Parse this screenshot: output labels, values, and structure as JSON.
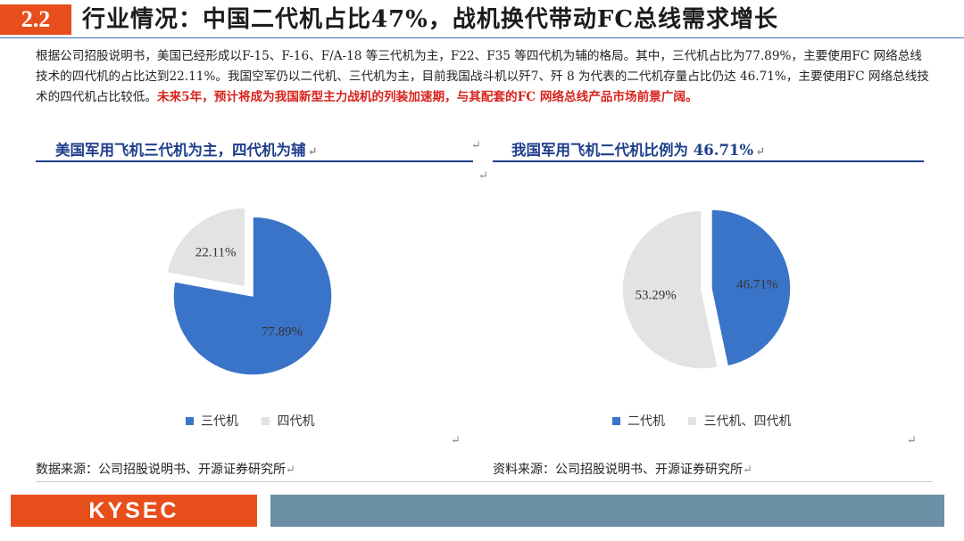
{
  "header": {
    "section_number": "2.2",
    "title": "行业情况：中国二代机占比47%，战机换代带动FC总线需求增长"
  },
  "paragraph": {
    "text_normal": "根据公司招股说明书，美国已经形成以F-15、F-16、F/A-18 等三代机为主，F22、F35 等四代机为辅的格局。其中，三代机占比为77.89%，主要使用FC 网络总线技术的四代机的占比达到22.11%。我国空军仍以二代机、三代机为主，目前我国战斗机以歼7、歼 8 为代表的二代机存量占比仍达 46.71%，主要使用FC 网络总线技术的四代机占比较低。",
    "text_highlight": "未来5年，预计将成为我国新型主力战机的列装加速期，与其配套的FC 网络总线产品市场前景广阔。"
  },
  "left_panel": {
    "subtitle": "美国军用飞机三代机为主，四代机为辅",
    "source": "数据来源：公司招股说明书、开源证券研究所"
  },
  "right_panel": {
    "subtitle": "我国军用飞机二代机比例为 46.71%",
    "source": "资料来源：公司招股说明书、开源证券研究所"
  },
  "marks": {
    "para": "↵"
  },
  "footer": {
    "logo_text": "KYSEC"
  },
  "colors": {
    "accent": "#e84e1b",
    "blue": "#3a74c8",
    "grey": "#e3e3e3",
    "navy": "#1f3f8c",
    "bar": "#6b8fa5"
  },
  "chart_data": [
    {
      "type": "pie",
      "title": "",
      "categories": [
        "三代机",
        "四代机"
      ],
      "values": [
        77.89,
        22.11
      ],
      "labels": [
        "77.89%",
        "22.11%"
      ],
      "colors": [
        "#3a74c8",
        "#e3e3e3"
      ],
      "exploded": [
        "四代机"
      ],
      "legend": "bottom-left"
    },
    {
      "type": "pie",
      "title": "",
      "categories": [
        "二代机",
        "三代机、四代机"
      ],
      "values": [
        46.71,
        53.29
      ],
      "labels": [
        "46.71%",
        "53.29%"
      ],
      "colors": [
        "#3a74c8",
        "#e3e3e3"
      ],
      "exploded": [
        "二代机"
      ],
      "legend": "bottom-left"
    }
  ]
}
